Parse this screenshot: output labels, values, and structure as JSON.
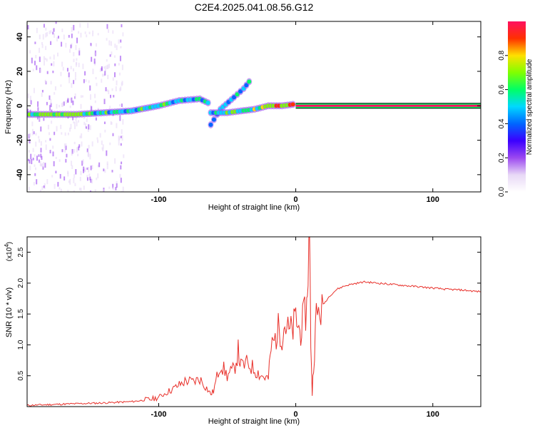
{
  "title": "C2E4.2025.041.08.56.G12",
  "colors": {
    "snr_line": "#e8302a",
    "background": "#ffffff",
    "colormap": [
      "#ffffff",
      "#e8d8f6",
      "#9b48f0",
      "#3b00ff",
      "#0066ff",
      "#00d8ff",
      "#00ff66",
      "#80ff00",
      "#ffe000",
      "#ff3000",
      "#ff1060"
    ]
  },
  "chart_data": [
    {
      "type": "heatmap",
      "title": "C2E4.2025.041.08.56.G12",
      "xlabel": "Height of straight line (km)",
      "ylabel": "Frequency (Hz)",
      "xlim": [
        -196,
        135
      ],
      "ylim": [
        -50,
        49
      ],
      "x_ticks": [
        -100,
        0,
        100
      ],
      "x_tick_labels": [
        "-100",
        "0",
        "100"
      ],
      "y_ticks": [
        -40,
        -20,
        0,
        20,
        40
      ],
      "y_tick_labels": [
        "-40",
        "-20",
        "0",
        "20",
        "40"
      ],
      "colorbar": {
        "label": "Normalized spectral amplitude",
        "range": [
          0,
          1
        ],
        "ticks": [
          0.0,
          0.2,
          0.4,
          0.6,
          0.8
        ],
        "tick_labels": [
          "0.0",
          "0.2",
          "0.4",
          "0.6",
          "0.8"
        ]
      },
      "main_track": [
        {
          "x": -196,
          "freq": -5,
          "amp": 0.55
        },
        {
          "x": -180,
          "freq": -5,
          "amp": 0.7
        },
        {
          "x": -160,
          "freq": -5,
          "amp": 0.6
        },
        {
          "x": -140,
          "freq": -4,
          "amp": 0.55
        },
        {
          "x": -120,
          "freq": -3,
          "amp": 0.55
        },
        {
          "x": -100,
          "freq": 0,
          "amp": 0.6
        },
        {
          "x": -85,
          "freq": 3,
          "amp": 0.55
        },
        {
          "x": -70,
          "freq": 4,
          "amp": 0.5
        },
        {
          "x": -62,
          "freq": 1,
          "amp": 0.5
        }
      ],
      "rising_branch": [
        {
          "x": -62,
          "freq": -11,
          "amp": 0.45
        },
        {
          "x": -55,
          "freq": -2,
          "amp": 0.5
        },
        {
          "x": -45,
          "freq": 5,
          "amp": 0.45
        },
        {
          "x": -38,
          "freq": 10,
          "amp": 0.5
        },
        {
          "x": -32,
          "freq": 16,
          "amp": 0.55
        }
      ],
      "lower_branch": [
        {
          "x": -62,
          "freq": -4,
          "amp": 0.5
        },
        {
          "x": -50,
          "freq": -4,
          "amp": 0.55
        },
        {
          "x": -40,
          "freq": -3,
          "amp": 0.6
        },
        {
          "x": -30,
          "freq": -2,
          "amp": 0.65
        },
        {
          "x": -20,
          "freq": 0,
          "amp": 0.75
        },
        {
          "x": -10,
          "freq": 0,
          "amp": 0.8
        },
        {
          "x": 0,
          "freq": 1,
          "amp": 0.85
        }
      ],
      "flat_band": {
        "x_start": 0,
        "x_end": 135,
        "freq": 0,
        "amp": 0.98
      }
    },
    {
      "type": "line",
      "xlabel": "Height of straight line (km)",
      "ylabel": "SNR (10 * v/v)",
      "y_scale_label": "(x10",
      "y_scale_exponent": "4",
      "xlim": [
        -196,
        135
      ],
      "ylim": [
        0,
        2.75
      ],
      "x_ticks": [
        -100,
        0,
        100
      ],
      "x_tick_labels": [
        "-100",
        "0",
        "100"
      ],
      "y_ticks": [
        0.5,
        1.0,
        1.5,
        2.0,
        2.5
      ],
      "y_tick_labels": [
        "0.5",
        "1.0",
        "1.5",
        "2.0",
        "2.5"
      ],
      "series": [
        {
          "x": [
            -196,
            -170,
            -140,
            -120,
            -105,
            -100,
            -95,
            -90,
            -85,
            -80,
            -75,
            -70,
            -65,
            -62,
            -60,
            -55,
            -50,
            -45,
            -42,
            -40,
            -35,
            -30,
            -25,
            -20,
            -18,
            -15,
            -12,
            -10,
            -8,
            -5,
            -2,
            0,
            3,
            5,
            8,
            9,
            10,
            11,
            12,
            13,
            15,
            20,
            25,
            30,
            35,
            40,
            45,
            50,
            60,
            70,
            80,
            90,
            100,
            110,
            120,
            130,
            135
          ],
          "y": [
            0.02,
            0.04,
            0.06,
            0.08,
            0.12,
            0.15,
            0.22,
            0.28,
            0.35,
            0.42,
            0.4,
            0.45,
            0.3,
            0.2,
            0.25,
            0.7,
            0.5,
            0.6,
            0.9,
            0.65,
            0.7,
            0.6,
            0.5,
            0.45,
            0.95,
            1.1,
            1.3,
            1.15,
            1.35,
            1.2,
            1.25,
            1.45,
            1.2,
            1.35,
            1.6,
            2.3,
            2.75,
            1.1,
            0.2,
            0.7,
            1.45,
            1.65,
            1.8,
            1.9,
            1.95,
            1.98,
            2.0,
            2.02,
            2.0,
            1.98,
            1.96,
            1.94,
            1.92,
            1.9,
            1.89,
            1.87,
            1.86
          ]
        }
      ]
    }
  ]
}
